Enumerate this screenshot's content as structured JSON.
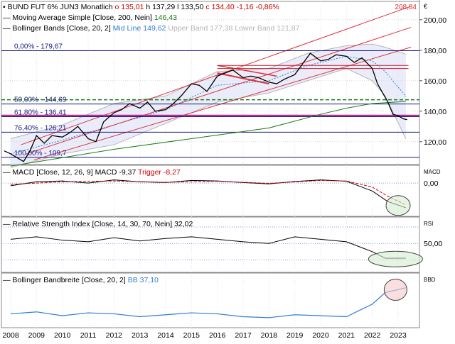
{
  "chart_data": {
    "type": "line",
    "header": {
      "symbol": "BUND FUT 6% JUN3 Monatlich",
      "ohlc": [
        {
          "text": "o 135,01",
          "color": "#cc0000"
        },
        {
          "text": "h 137,29",
          "color": "#000000"
        },
        {
          "text": "l 133,50",
          "color": "#000000"
        },
        {
          "text": "c 134,40",
          "color": "#cc0000"
        },
        {
          "text": "-1,16",
          "color": "#cc0000"
        },
        {
          "text": "-0,86%",
          "color": "#cc0000"
        }
      ]
    },
    "legend_lines": [
      {
        "label": "Moving Average Simple",
        "params": "[Close, 200, Nein]",
        "values": [
          {
            "text": "146,43",
            "color": "#1a7a1a"
          }
        ]
      },
      {
        "label": "Bollinger Bands",
        "params": "[Close, 20, 2]",
        "values": [
          {
            "text": "Mid Line 149,62",
            "color": "#2e7dd6"
          },
          {
            "text": "Upper Band 177,38",
            "color": "#b5b5b5"
          },
          {
            "text": "Lower Band 121,87",
            "color": "#b5b5b5"
          }
        ]
      }
    ],
    "currency_symbol": "€",
    "x_labels": [
      "2008",
      "2009",
      "2010",
      "2011",
      "2012",
      "2013",
      "2014",
      "2015",
      "2016",
      "2017",
      "2018",
      "2019",
      "2020",
      "2021",
      "2022",
      "2023"
    ],
    "price_axis": {
      "ticks": [
        "200,00",
        "180,00",
        "160,00",
        "140,00",
        "120,00"
      ],
      "tick_values": [
        200,
        180,
        160,
        140,
        120
      ],
      "range": [
        105,
        212
      ]
    },
    "fib_levels": [
      {
        "label": "0,00% - 179,67",
        "value": 179.67,
        "color": "#1a1a80"
      },
      {
        "label": "50,00% - 144,69",
        "value": 144.69,
        "color": "#1a1a80"
      },
      {
        "label": "61,80% - 136,41",
        "value": 136.41,
        "color": "#1a1a80"
      },
      {
        "label": "76,40% - 126,21",
        "value": 126.21,
        "color": "#1a1a80"
      },
      {
        "label": "100,00% - 109,7",
        "value": 109.7,
        "color": "#1a1a80"
      }
    ],
    "channel_label": "208,84",
    "price_series": [
      [
        2007.75,
        114
      ],
      [
        2008.0,
        112
      ],
      [
        2008.3,
        109
      ],
      [
        2008.5,
        107
      ],
      [
        2008.75,
        114
      ],
      [
        2009.0,
        124
      ],
      [
        2009.3,
        119
      ],
      [
        2009.6,
        124
      ],
      [
        2010.0,
        123
      ],
      [
        2010.3,
        126
      ],
      [
        2010.6,
        130
      ],
      [
        2011.0,
        122
      ],
      [
        2011.3,
        120
      ],
      [
        2011.6,
        133
      ],
      [
        2012.0,
        139
      ],
      [
        2012.3,
        141
      ],
      [
        2012.6,
        145
      ],
      [
        2013.0,
        142
      ],
      [
        2013.3,
        146
      ],
      [
        2013.6,
        140
      ],
      [
        2014.0,
        141
      ],
      [
        2014.3,
        145
      ],
      [
        2014.6,
        150
      ],
      [
        2015.0,
        158
      ],
      [
        2015.3,
        157
      ],
      [
        2015.6,
        153
      ],
      [
        2016.0,
        163
      ],
      [
        2016.3,
        165
      ],
      [
        2016.6,
        167
      ],
      [
        2017.0,
        162
      ],
      [
        2017.3,
        163
      ],
      [
        2017.6,
        162
      ],
      [
        2018.0,
        159
      ],
      [
        2018.3,
        158
      ],
      [
        2018.6,
        161
      ],
      [
        2019.0,
        164
      ],
      [
        2019.3,
        171
      ],
      [
        2019.6,
        178
      ],
      [
        2020.0,
        173
      ],
      [
        2020.3,
        174
      ],
      [
        2020.6,
        177
      ],
      [
        2021.0,
        176
      ],
      [
        2021.3,
        172
      ],
      [
        2021.6,
        175
      ],
      [
        2022.0,
        168
      ],
      [
        2022.2,
        158
      ],
      [
        2022.4,
        152
      ],
      [
        2022.6,
        146
      ],
      [
        2022.8,
        138
      ],
      [
        2023.0,
        137
      ],
      [
        2023.2,
        135
      ],
      [
        2023.35,
        134.4
      ]
    ],
    "ma200_series": [
      [
        2008.0,
        104
      ],
      [
        2012.0,
        115
      ],
      [
        2015.0,
        122
      ],
      [
        2018.0,
        129
      ],
      [
        2020.0,
        138
      ],
      [
        2021.0,
        142
      ],
      [
        2022.0,
        145
      ],
      [
        2023.3,
        146.43
      ]
    ],
    "bb_mid_series": [
      [
        2008.0,
        112
      ],
      [
        2010.0,
        121
      ],
      [
        2012.0,
        131
      ],
      [
        2014.0,
        141
      ],
      [
        2016.0,
        157
      ],
      [
        2018.0,
        160
      ],
      [
        2019.5,
        170
      ],
      [
        2021.0,
        176
      ],
      [
        2022.0,
        173
      ],
      [
        2022.5,
        166
      ],
      [
        2023.3,
        149.62
      ]
    ],
    "bb_upper_series": [
      [
        2008.0,
        122
      ],
      [
        2010.0,
        131
      ],
      [
        2012.0,
        145
      ],
      [
        2014.0,
        150
      ],
      [
        2016.0,
        166
      ],
      [
        2018.0,
        168
      ],
      [
        2019.5,
        178
      ],
      [
        2021.0,
        183
      ],
      [
        2022.0,
        184
      ],
      [
        2022.5,
        182
      ],
      [
        2023.3,
        177.38
      ]
    ],
    "bb_lower_series": [
      [
        2008.0,
        103
      ],
      [
        2010.0,
        112
      ],
      [
        2012.0,
        118
      ],
      [
        2014.0,
        132
      ],
      [
        2016.0,
        146
      ],
      [
        2018.0,
        152
      ],
      [
        2019.5,
        160
      ],
      [
        2021.0,
        168
      ],
      [
        2022.0,
        160
      ],
      [
        2022.5,
        150
      ],
      [
        2023.3,
        121.87
      ]
    ],
    "panels": [
      {
        "id": "macd",
        "title": "MACD  [Close, 12, 26, 9]",
        "values": [
          {
            "text": "MACD -9,37",
            "color": "#000000"
          },
          {
            "text": "Trigger -8,27",
            "color": "#cc0000"
          }
        ],
        "axis_label": "MACD",
        "ticks": [
          "0,00"
        ]
      },
      {
        "id": "rsi",
        "title": "Relative Strength Index  [Close, 14, 30, 70, Nein]",
        "values": [
          {
            "text": "32,02",
            "color": "#000000"
          }
        ],
        "axis_label": "RSI",
        "ticks": [
          "50,00"
        ]
      },
      {
        "id": "bbw",
        "title": "Bollinger Bandbreite  [Close, 20, 2]",
        "values": [
          {
            "text": "BB 37,10",
            "color": "#2e7dd6"
          }
        ],
        "axis_label": "BBD",
        "ticks": []
      }
    ],
    "macd_series": [
      [
        2008.0,
        -1.0
      ],
      [
        2009.0,
        0.5
      ],
      [
        2010.0,
        0.8
      ],
      [
        2011.0,
        0
      ],
      [
        2012.0,
        1.2
      ],
      [
        2013.0,
        0.5
      ],
      [
        2014.0,
        0.2
      ],
      [
        2015.0,
        1.0
      ],
      [
        2016.0,
        0.8
      ],
      [
        2017.0,
        0.2
      ],
      [
        2018.0,
        -0.3
      ],
      [
        2019.0,
        0.6
      ],
      [
        2020.0,
        1.2
      ],
      [
        2021.0,
        0.7
      ],
      [
        2022.0,
        -3
      ],
      [
        2022.6,
        -7
      ],
      [
        2023.3,
        -9.37
      ]
    ],
    "macd_signal_series": [
      [
        2008.0,
        -0.5
      ],
      [
        2010.0,
        0.5
      ],
      [
        2012.0,
        0.8
      ],
      [
        2014.0,
        0.3
      ],
      [
        2016.0,
        0.7
      ],
      [
        2018.0,
        -0.1
      ],
      [
        2020.0,
        1.0
      ],
      [
        2021.0,
        0.8
      ],
      [
        2022.0,
        -1.5
      ],
      [
        2022.6,
        -5
      ],
      [
        2023.3,
        -8.27
      ]
    ],
    "rsi_series": [
      [
        2008.0,
        55
      ],
      [
        2009.0,
        58
      ],
      [
        2010.0,
        54
      ],
      [
        2011.0,
        52
      ],
      [
        2012.0,
        57
      ],
      [
        2013.0,
        53
      ],
      [
        2014.0,
        56
      ],
      [
        2015.0,
        58
      ],
      [
        2016.0,
        55
      ],
      [
        2017.0,
        52
      ],
      [
        2018.0,
        50
      ],
      [
        2019.0,
        58
      ],
      [
        2020.0,
        55
      ],
      [
        2021.0,
        52
      ],
      [
        2022.0,
        40
      ],
      [
        2022.5,
        32
      ],
      [
        2023.3,
        32.02
      ]
    ],
    "bbw_series": [
      [
        2008.0,
        10
      ],
      [
        2009.0,
        12
      ],
      [
        2010.0,
        8
      ],
      [
        2011.0,
        11
      ],
      [
        2012.0,
        10
      ],
      [
        2013.0,
        7
      ],
      [
        2014.0,
        9
      ],
      [
        2015.0,
        11
      ],
      [
        2016.0,
        10
      ],
      [
        2017.0,
        7
      ],
      [
        2018.0,
        6
      ],
      [
        2019.0,
        9
      ],
      [
        2020.0,
        8
      ],
      [
        2021.0,
        7
      ],
      [
        2022.0,
        20
      ],
      [
        2022.5,
        32
      ],
      [
        2023.3,
        37.1
      ]
    ],
    "colors": {
      "price": "#000000",
      "ma200": "#1a7a1a",
      "bb_mid": "#2e7dd6",
      "bb_band": "#b5b5b5",
      "channel": "#e0303a",
      "fib": "#1a1a80",
      "horiz_green": "#1a7a1a",
      "horiz_magenta": "#b0218a"
    }
  }
}
